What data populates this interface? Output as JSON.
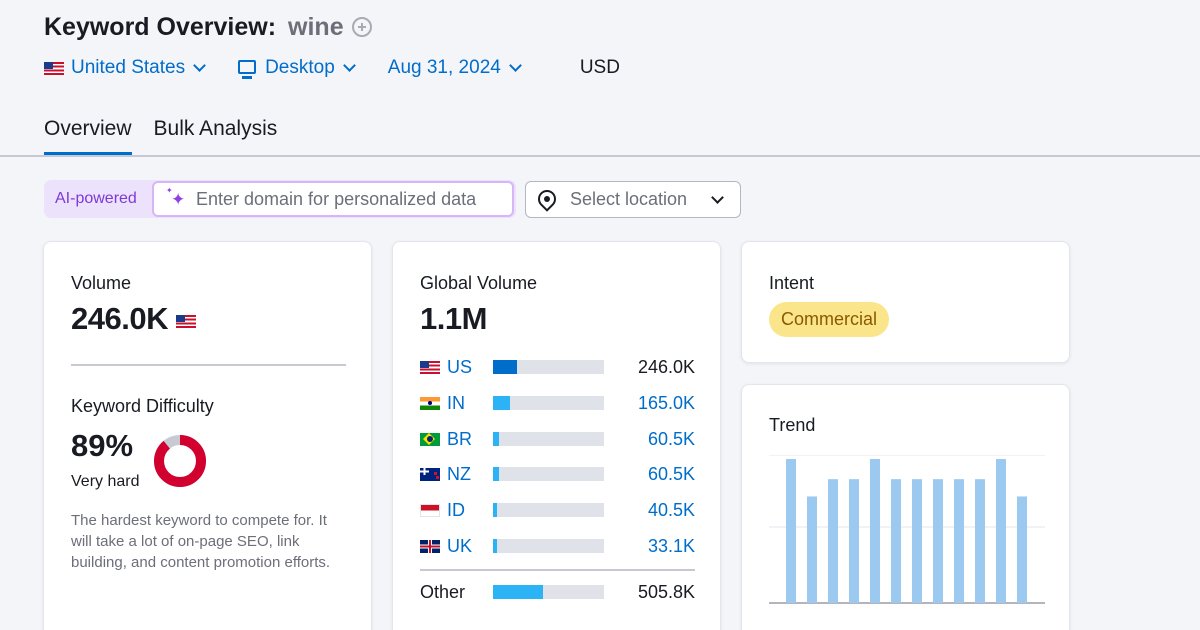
{
  "header": {
    "title": "Keyword Overview:",
    "keyword": "wine"
  },
  "filters": {
    "country": "United States",
    "device": "Desktop",
    "date": "Aug 31, 2024",
    "currency": "USD"
  },
  "tabs": [
    {
      "label": "Overview",
      "active": true
    },
    {
      "label": "Bulk Analysis",
      "active": false
    }
  ],
  "personalize": {
    "badge": "AI-powered",
    "domain_placeholder": "Enter domain for personalized data",
    "location_placeholder": "Select location"
  },
  "volume_card": {
    "label": "Volume",
    "value": "246.0K",
    "flag": "us-flag-icon",
    "kd_label": "Keyword Difficulty",
    "kd_value": "89%",
    "kd_percent": 89,
    "kd_text": "Very hard",
    "kd_description": "The hardest keyword to compete for. It will take a lot of on-page SEO, link building, and content promotion efforts.",
    "kd_color": "#d1002f"
  },
  "global_card": {
    "label": "Global Volume",
    "value": "1.1M",
    "countries": [
      {
        "code": "US",
        "value": "246.0K",
        "share": 0.22,
        "flag": "us-flag-icon"
      },
      {
        "code": "IN",
        "value": "165.0K",
        "share": 0.15,
        "flag": "in-flag-icon"
      },
      {
        "code": "BR",
        "value": "60.5K",
        "share": 0.05,
        "flag": "br-flag-icon"
      },
      {
        "code": "NZ",
        "value": "60.5K",
        "share": 0.05,
        "flag": "nz-flag-icon"
      },
      {
        "code": "ID",
        "value": "40.5K",
        "share": 0.04,
        "flag": "id-flag-icon"
      },
      {
        "code": "UK",
        "value": "33.1K",
        "share": 0.03,
        "flag": "uk-flag-icon"
      }
    ],
    "other": {
      "label": "Other",
      "value": "505.8K",
      "share": 0.45
    }
  },
  "intent_card": {
    "label": "Intent",
    "value": "Commercial"
  },
  "trend_card": {
    "label": "Trend",
    "chart_data": {
      "type": "bar",
      "values": [
        1.0,
        0.74,
        0.86,
        0.86,
        1.0,
        0.86,
        0.86,
        0.86,
        0.86,
        0.86,
        1.0,
        0.74
      ],
      "values_scaled_note": "",
      "ylim": [
        0,
        1.0
      ]
    }
  },
  "colors": {
    "accent": "#006dca",
    "bar_dark": "#006dca",
    "bar_light": "#2bb3f5",
    "trend_bar": "#9cc9f0"
  }
}
